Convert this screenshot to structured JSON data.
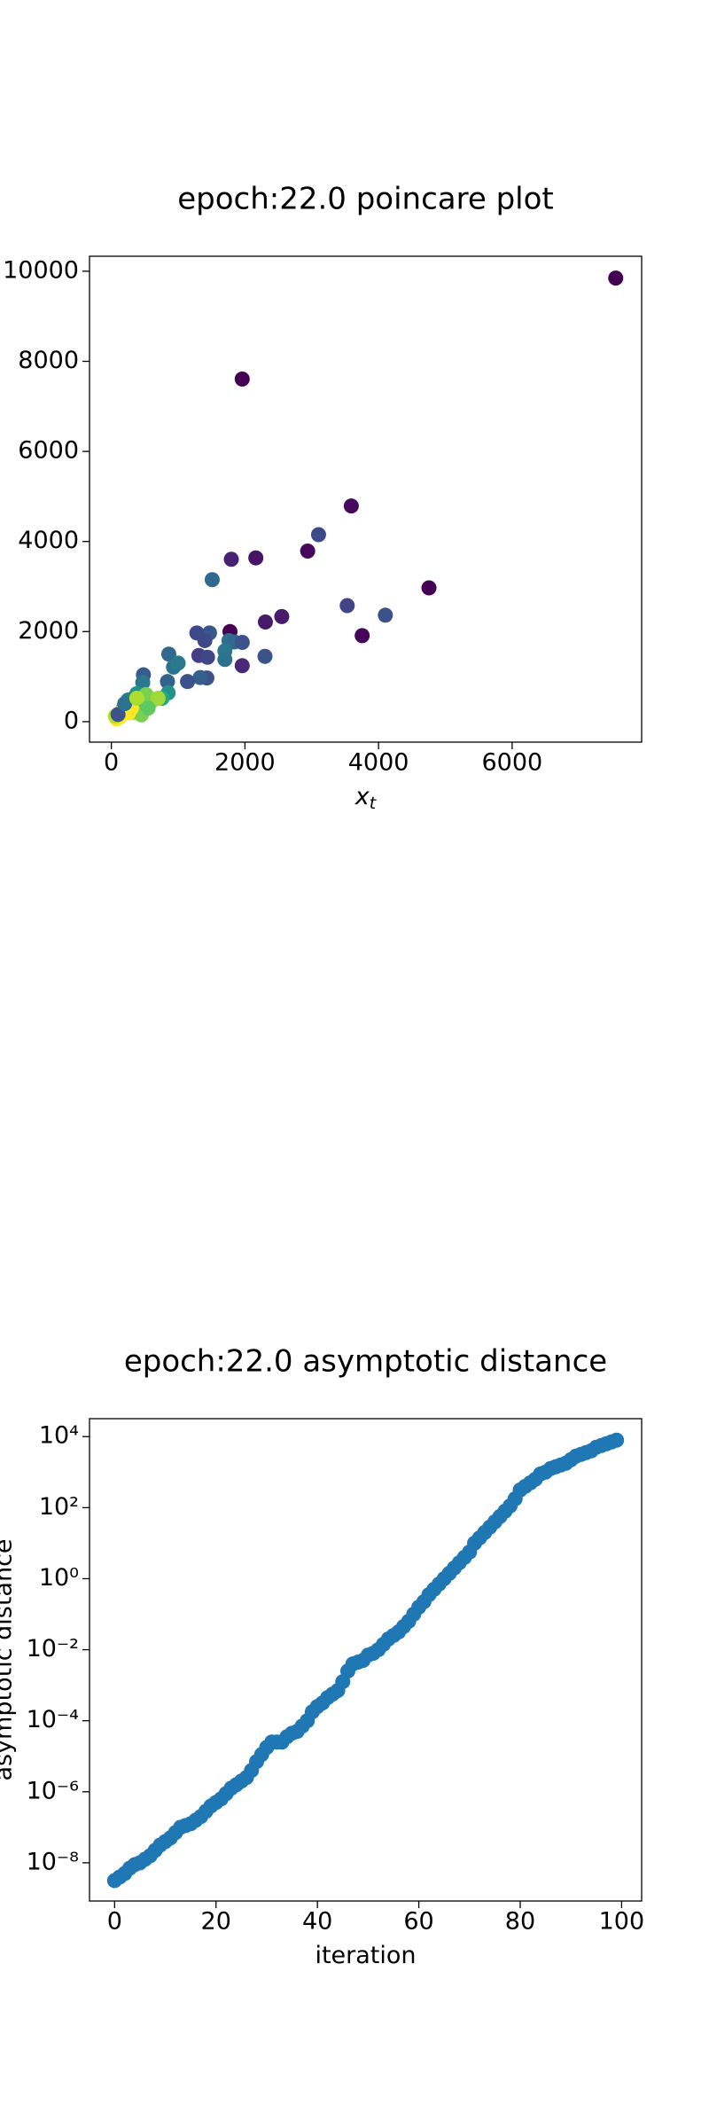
{
  "chart_data": [
    {
      "type": "scatter",
      "title": "epoch:22.0 poincare plot",
      "xlabel": "x",
      "xlabel_subscript": "t",
      "xlim": [
        -327,
        7939
      ],
      "ylim": [
        -455,
        10333
      ],
      "xticks": [
        0,
        2000,
        4000,
        6000
      ],
      "yticks": [
        0,
        2000,
        4000,
        6000,
        8000,
        10000
      ],
      "series": [
        {
          "x": [
            7551,
            1959,
            3592,
            4755,
            3755,
            3531,
            2939,
            2163,
            1796,
            2551,
            2306,
            1776,
            1959,
            3102,
            4102,
            1510,
            1470,
            1280,
            1310,
            1440,
            1400,
            2300,
            1760,
            1840,
            1960,
            1700,
            1700,
            1430,
            1330,
            1140,
            860,
            840,
            930,
            1000,
            850,
            760,
            480,
            470,
            380,
            250,
            300,
            180,
            400,
            520,
            600,
            700,
            350,
            450,
            250,
            180,
            120,
            80,
            60,
            150,
            220,
            300,
            260,
            100,
            200,
            550,
            380
          ],
          "values": [
            9848,
            7606,
            4788,
            2970,
            1909,
            2576,
            3788,
            3636,
            3606,
            2333,
            2212,
            2000,
            1242,
            4151,
            2364,
            3152,
            1970,
            1970,
            1470,
            1430,
            1800,
            1450,
            1800,
            1770,
            1760,
            1570,
            1380,
            970,
            980,
            890,
            1500,
            890,
            1210,
            1300,
            640,
            520,
            1040,
            870,
            620,
            480,
            350,
            300,
            430,
            600,
            450,
            520,
            200,
            150,
            250,
            180,
            100,
            60,
            120,
            220,
            320,
            300,
            200,
            160,
            400,
            300,
            520
          ],
          "colors": [
            "#440154",
            "#440154",
            "#46085c",
            "#440154",
            "#450559",
            "#414487",
            "#46085c",
            "#471365",
            "#482173",
            "#481a6c",
            "#481a6c",
            "#440154",
            "#482878",
            "#3e4989",
            "#3b528b",
            "#31688e",
            "#38588c",
            "#3e4989",
            "#433e85",
            "#404688",
            "#3e4989",
            "#3b528b",
            "#2c728e",
            "#31688e",
            "#3b528b",
            "#2a788e",
            "#2c728e",
            "#3b528b",
            "#355f8d",
            "#3b528b",
            "#31688e",
            "#33638d",
            "#2c728e",
            "#2a788e",
            "#21918c",
            "#22a884",
            "#365c8d",
            "#2a788e",
            "#21918c",
            "#277f8e",
            "#22a884",
            "#31688e",
            "#44bf70",
            "#7ad151",
            "#7ad151",
            "#a0da39",
            "#bddf26",
            "#7ad151",
            "#d2e21b",
            "#fde725",
            "#fde725",
            "#fde725",
            "#b5de2b",
            "#fde725",
            "#e5e419",
            "#fde725",
            "#fde725",
            "#3b528b",
            "#2c728e",
            "#5ec962",
            "#addc30"
          ]
        }
      ]
    },
    {
      "type": "scatter",
      "title": "epoch:22.0 asymptotic distance",
      "xlabel": "iteration",
      "ylabel": "asymptotic distance",
      "yscale": "log",
      "xlim": [
        -4.95,
        103.95
      ],
      "ylim": [
        8.4e-10,
        32000.0
      ],
      "xticks": [
        0,
        20,
        40,
        60,
        80,
        100
      ],
      "yticks": [
        {
          "value": 1e-08,
          "label": "10⁻⁸"
        },
        {
          "value": 1e-06,
          "label": "10⁻⁶"
        },
        {
          "value": 0.0001,
          "label": "10⁻⁴"
        },
        {
          "value": 0.01,
          "label": "10⁻²"
        },
        {
          "value": 1,
          "label": "10⁰"
        },
        {
          "value": 100,
          "label": "10²"
        },
        {
          "value": 10000,
          "label": "10⁴"
        }
      ],
      "series": [
        {
          "color": "#1f77b4",
          "x": [
            0,
            1,
            2,
            3,
            4,
            5,
            6,
            7,
            8,
            9,
            10,
            11,
            12,
            13,
            14,
            15,
            16,
            17,
            18,
            19,
            20,
            21,
            22,
            23,
            24,
            25,
            26,
            27,
            28,
            29,
            30,
            31,
            32,
            33,
            34,
            35,
            36,
            37,
            38,
            39,
            40,
            41,
            42,
            43,
            44,
            45,
            46,
            47,
            48,
            49,
            50,
            51,
            52,
            53,
            54,
            55,
            56,
            57,
            58,
            59,
            60,
            61,
            62,
            63,
            64,
            65,
            66,
            67,
            68,
            69,
            70,
            71,
            72,
            73,
            74,
            75,
            76,
            77,
            78,
            79,
            80,
            81,
            82,
            83,
            84,
            85,
            86,
            87,
            88,
            89,
            90,
            91,
            92,
            93,
            94,
            95,
            96,
            97,
            98,
            99
          ],
          "values": [
            3.16e-09,
            3.98e-09,
            5.01e-09,
            7.08e-09,
            8.91e-09,
            1e-08,
            1.26e-08,
            1.58e-08,
            2.24e-08,
            3.16e-08,
            3.98e-08,
            5.01e-08,
            7.08e-08,
            1e-07,
            1.12e-07,
            1.26e-07,
            1.58e-07,
            2e-07,
            2.82e-07,
            3.98e-07,
            5.01e-07,
            6.31e-07,
            8.91e-07,
            1.26e-06,
            1.58e-06,
            2e-06,
            2.51e-06,
            3.98e-06,
            7.08e-06,
            1.12e-05,
            1.78e-05,
            2.51e-05,
            2.51e-05,
            2.51e-05,
            3.55e-05,
            4.47e-05,
            5.01e-05,
            7.08e-05,
            0.0001,
            0.000178,
            0.000251,
            0.000316,
            0.000447,
            0.000562,
            0.000708,
            0.00126,
            0.00251,
            0.00398,
            0.00447,
            0.00501,
            0.00708,
            0.00794,
            0.01,
            0.0141,
            0.02,
            0.0251,
            0.0316,
            0.0447,
            0.0631,
            0.1,
            0.158,
            0.224,
            0.355,
            0.501,
            0.708,
            1,
            1.41,
            2.0,
            2.82,
            3.98,
            5.62,
            10,
            14.1,
            20,
            28.2,
            39.8,
            56.2,
            79.4,
            112,
            178,
            316,
            398,
            501,
            631,
            891,
            1000,
            1259,
            1413,
            1585,
            1778,
            2239,
            2818,
            3162,
            3548,
            3981,
            5012,
            5623,
            6310,
            7079,
            7943
          ]
        }
      ]
    }
  ]
}
